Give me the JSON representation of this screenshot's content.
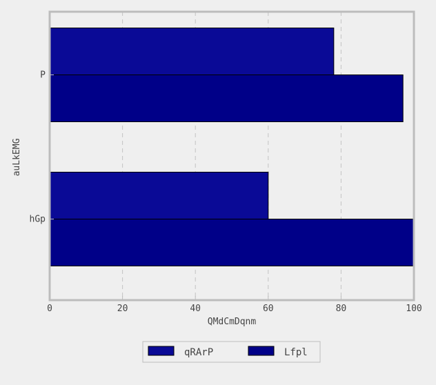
{
  "chart_data": {
    "type": "bar",
    "orientation": "horizontal",
    "categories": [
      "P",
      "hGp"
    ],
    "series": [
      {
        "name": "qRArP",
        "values": [
          78,
          60
        ],
        "color": "#0a0a96"
      },
      {
        "name": "Lfpl",
        "values": [
          97,
          100
        ],
        "color": "#000088"
      }
    ],
    "xlabel": "QMdCmDqnm",
    "ylabel": "auLkEMG",
    "xlim": [
      0,
      100
    ],
    "xticks": [
      0,
      20,
      40,
      60,
      80,
      100
    ],
    "grid": true,
    "legend_position": "bottom-center"
  }
}
